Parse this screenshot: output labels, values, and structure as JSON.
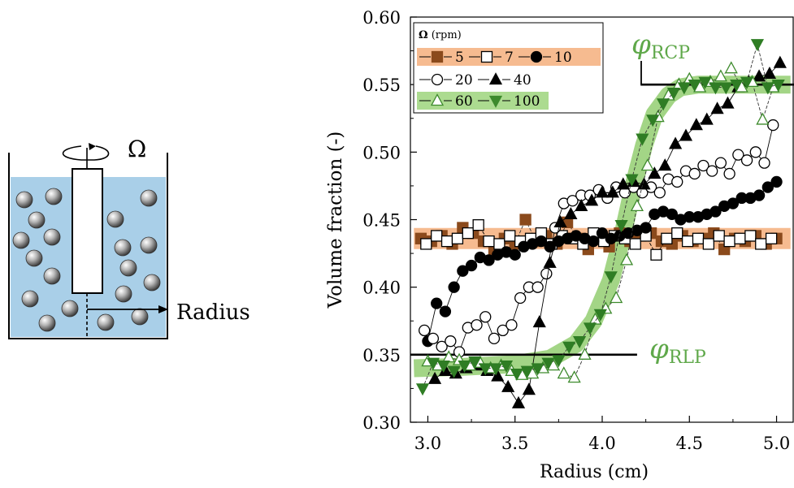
{
  "schematic": {
    "omega_symbol": "Ω",
    "radius_label": "Radius"
  },
  "annotations": {
    "rcp_phi": "φ",
    "rcp_sub": "RCP",
    "rlp_phi": "φ",
    "rlp_sub": "RLP"
  },
  "legend": {
    "title_symbol": "Ω",
    "title_unit": "(rpm)",
    "rows": [
      {
        "band_color": "#f5b78a",
        "entries": [
          {
            "label": "5",
            "marker": "filled-square",
            "color": "#8b4a1c"
          },
          {
            "label": "7",
            "marker": "open-square",
            "color": "#000000"
          },
          {
            "label": "10",
            "marker": "filled-circle",
            "color": "#000000"
          }
        ]
      },
      {
        "band_color": "",
        "entries": [
          {
            "label": "20",
            "marker": "open-circle",
            "color": "#000000"
          },
          {
            "label": "40",
            "marker": "filled-triangle-up",
            "color": "#000000"
          }
        ]
      },
      {
        "band_color": "#a8d98a",
        "entries": [
          {
            "label": "60",
            "marker": "open-triangle-up",
            "color": "#3d8a2c"
          },
          {
            "label": "100",
            "marker": "filled-triangle-down",
            "color": "#3d8a2c"
          }
        ]
      }
    ]
  },
  "colors": {
    "fluid": "#a9cfe8",
    "orange_band": "#f5b78a",
    "green_band": "#9ed37f",
    "annotation_green": "#5fa84a",
    "brown_marker": "#8b4a1c",
    "green_marker": "#2f7d24"
  },
  "chart_data": {
    "type": "scatter",
    "title": "",
    "xlabel": "Radius (cm)",
    "ylabel": "Volume fraction (-)",
    "xlim": [
      2.9,
      5.1
    ],
    "ylim": [
      0.3,
      0.6
    ],
    "xticks": [
      "3.0",
      "3.5",
      "4.0",
      "4.5",
      "5.0"
    ],
    "xtick_values": [
      3.0,
      3.5,
      4.0,
      4.5,
      5.0
    ],
    "yticks": [
      "0.30",
      "0.35",
      "0.40",
      "0.45",
      "0.50",
      "0.55",
      "0.60"
    ],
    "ytick_values": [
      0.3,
      0.35,
      0.4,
      0.45,
      0.5,
      0.55,
      0.6
    ],
    "grid": false,
    "legend_position": "top-left",
    "reference_lines": [
      {
        "name": "RCP",
        "y": 0.55,
        "x_range": [
          4.22,
          5.1
        ]
      },
      {
        "name": "RLP",
        "y": 0.35,
        "x_range": [
          2.9,
          4.2
        ]
      }
    ],
    "bands": [
      {
        "color": "#f5b78a",
        "x": [
          2.92,
          5.08
        ],
        "y": [
          0.436,
          0.436
        ]
      },
      {
        "color": "#9ed37f",
        "x": [
          2.92,
          3.2,
          3.5,
          3.7,
          3.85,
          3.95,
          4.05,
          4.12,
          4.18,
          4.24,
          4.3,
          4.38,
          4.45,
          4.55,
          4.7,
          5.08
        ],
        "y": [
          0.34,
          0.341,
          0.343,
          0.347,
          0.358,
          0.375,
          0.405,
          0.44,
          0.475,
          0.505,
          0.528,
          0.542,
          0.548,
          0.55,
          0.55,
          0.55
        ]
      }
    ],
    "series": [
      {
        "name": "5",
        "marker": "filled-square",
        "color": "#8b4a1c",
        "x": [
          2.96,
          3.02,
          3.08,
          3.14,
          3.2,
          3.26,
          3.32,
          3.38,
          3.44,
          3.5,
          3.56,
          3.62,
          3.68,
          3.74,
          3.8,
          3.86,
          3.92,
          3.98,
          4.04,
          4.1,
          4.16,
          4.22,
          4.28,
          4.34,
          4.4,
          4.46,
          4.52,
          4.58,
          4.64,
          4.7,
          4.76,
          4.82,
          4.88,
          4.94,
          5.0
        ],
        "y": [
          0.436,
          0.434,
          0.438,
          0.432,
          0.444,
          0.44,
          0.434,
          0.428,
          0.436,
          0.432,
          0.45,
          0.434,
          0.438,
          0.432,
          0.448,
          0.436,
          0.428,
          0.436,
          0.43,
          0.44,
          0.434,
          0.438,
          0.44,
          0.434,
          0.432,
          0.438,
          0.434,
          0.436,
          0.44,
          0.428,
          0.436,
          0.434,
          0.438,
          0.432,
          0.436
        ]
      },
      {
        "name": "7",
        "marker": "open-square",
        "color": "#000000",
        "x": [
          2.99,
          3.05,
          3.11,
          3.17,
          3.23,
          3.29,
          3.35,
          3.41,
          3.47,
          3.53,
          3.59,
          3.65,
          3.71,
          3.77,
          3.83,
          3.89,
          3.95,
          4.01,
          4.07,
          4.13,
          4.19,
          4.25,
          4.31,
          4.37,
          4.43,
          4.49,
          4.55,
          4.61,
          4.67,
          4.73,
          4.79,
          4.85,
          4.91,
          4.97
        ],
        "y": [
          0.432,
          0.438,
          0.434,
          0.436,
          0.44,
          0.446,
          0.434,
          0.432,
          0.438,
          0.434,
          0.436,
          0.44,
          0.432,
          0.438,
          0.436,
          0.432,
          0.44,
          0.434,
          0.438,
          0.436,
          0.432,
          0.438,
          0.424,
          0.436,
          0.44,
          0.434,
          0.436,
          0.432,
          0.438,
          0.434,
          0.436,
          0.438,
          0.432,
          0.436
        ]
      },
      {
        "name": "10",
        "marker": "filled-circle",
        "color": "#000000",
        "x": [
          3.0,
          3.05,
          3.1,
          3.15,
          3.2,
          3.25,
          3.3,
          3.35,
          3.4,
          3.45,
          3.5,
          3.55,
          3.6,
          3.65,
          3.7,
          3.75,
          3.8,
          3.85,
          3.9,
          3.95,
          4.0,
          4.05,
          4.1,
          4.15,
          4.2,
          4.25,
          4.3,
          4.35,
          4.4,
          4.45,
          4.5,
          4.55,
          4.6,
          4.65,
          4.7,
          4.75,
          4.8,
          4.85,
          4.9,
          4.95,
          5.0
        ],
        "y": [
          0.36,
          0.388,
          0.382,
          0.4,
          0.412,
          0.416,
          0.422,
          0.42,
          0.424,
          0.426,
          0.424,
          0.43,
          0.432,
          0.434,
          0.43,
          0.434,
          0.436,
          0.438,
          0.436,
          0.434,
          0.44,
          0.436,
          0.438,
          0.44,
          0.442,
          0.444,
          0.454,
          0.456,
          0.454,
          0.45,
          0.452,
          0.452,
          0.454,
          0.456,
          0.46,
          0.462,
          0.466,
          0.466,
          0.468,
          0.474,
          0.478
        ]
      },
      {
        "name": "20",
        "marker": "open-circle",
        "color": "#000000",
        "x": [
          2.98,
          3.03,
          3.08,
          3.13,
          3.18,
          3.23,
          3.28,
          3.33,
          3.38,
          3.43,
          3.48,
          3.53,
          3.58,
          3.63,
          3.68,
          3.73,
          3.78,
          3.83,
          3.88,
          3.93,
          3.98,
          4.03,
          4.08,
          4.13,
          4.18,
          4.23,
          4.28,
          4.33,
          4.38,
          4.43,
          4.48,
          4.53,
          4.58,
          4.63,
          4.68,
          4.73,
          4.78,
          4.83,
          4.88,
          4.93,
          4.98
        ],
        "y": [
          0.368,
          0.362,
          0.356,
          0.36,
          0.352,
          0.37,
          0.372,
          0.378,
          0.362,
          0.368,
          0.372,
          0.392,
          0.4,
          0.4,
          0.41,
          0.444,
          0.462,
          0.464,
          0.468,
          0.468,
          0.472,
          0.466,
          0.474,
          0.47,
          0.474,
          0.47,
          0.474,
          0.47,
          0.48,
          0.478,
          0.486,
          0.484,
          0.49,
          0.486,
          0.492,
          0.484,
          0.498,
          0.494,
          0.5,
          0.492,
          0.52
        ]
      },
      {
        "name": "40",
        "marker": "filled-triangle-up",
        "color": "#000000",
        "x": [
          3.04,
          3.1,
          3.16,
          3.22,
          3.28,
          3.34,
          3.4,
          3.46,
          3.52,
          3.58,
          3.64,
          3.7,
          3.76,
          3.82,
          3.88,
          3.94,
          4.0,
          4.06,
          4.12,
          4.18,
          4.24,
          4.3,
          4.36,
          4.42,
          4.48,
          4.54,
          4.6,
          4.66,
          4.72,
          4.78,
          4.84,
          4.9,
          4.96,
          5.02
        ],
        "y": [
          0.332,
          0.338,
          0.336,
          0.34,
          0.342,
          0.338,
          0.334,
          0.326,
          0.314,
          0.324,
          0.374,
          0.418,
          0.448,
          0.454,
          0.46,
          0.464,
          0.47,
          0.47,
          0.476,
          0.478,
          0.476,
          0.484,
          0.49,
          0.506,
          0.512,
          0.52,
          0.524,
          0.532,
          0.536,
          0.548,
          0.552,
          0.556,
          0.558,
          0.566
        ]
      },
      {
        "name": "60",
        "marker": "open-triangle-up",
        "color": "#3d8a2c",
        "x": [
          3.0,
          3.06,
          3.12,
          3.18,
          3.24,
          3.3,
          3.36,
          3.42,
          3.48,
          3.54,
          3.6,
          3.66,
          3.72,
          3.78,
          3.84,
          3.9,
          3.96,
          4.02,
          4.08,
          4.14,
          4.2,
          4.26,
          4.32,
          4.38,
          4.44,
          4.5,
          4.56,
          4.62,
          4.68,
          4.74,
          4.8,
          4.86,
          4.92,
          4.98
        ],
        "y": [
          0.345,
          0.342,
          0.348,
          0.346,
          0.342,
          0.344,
          0.34,
          0.342,
          0.338,
          0.335,
          0.336,
          0.34,
          0.342,
          0.336,
          0.333,
          0.35,
          0.376,
          0.384,
          0.392,
          0.42,
          0.46,
          0.49,
          0.526,
          0.542,
          0.55,
          0.554,
          0.548,
          0.552,
          0.556,
          0.562,
          0.548,
          0.552,
          0.524,
          0.548
        ]
      },
      {
        "name": "100",
        "marker": "filled-triangle-down",
        "color": "#2f7d24",
        "x": [
          2.97,
          3.03,
          3.09,
          3.15,
          3.21,
          3.27,
          3.33,
          3.39,
          3.45,
          3.51,
          3.57,
          3.63,
          3.69,
          3.75,
          3.81,
          3.87,
          3.93,
          3.99,
          4.05,
          4.11,
          4.17,
          4.23,
          4.29,
          4.35,
          4.41,
          4.47,
          4.53,
          4.59,
          4.65,
          4.71,
          4.77,
          4.83,
          4.89,
          4.95,
          5.01
        ],
        "y": [
          0.325,
          0.344,
          0.342,
          0.338,
          0.342,
          0.345,
          0.34,
          0.34,
          0.342,
          0.336,
          0.338,
          0.34,
          0.344,
          0.346,
          0.356,
          0.36,
          0.37,
          0.38,
          0.408,
          0.446,
          0.48,
          0.51,
          0.524,
          0.536,
          0.544,
          0.548,
          0.55,
          0.552,
          0.548,
          0.548,
          0.55,
          0.552,
          0.58,
          0.548,
          0.55
        ]
      }
    ]
  }
}
